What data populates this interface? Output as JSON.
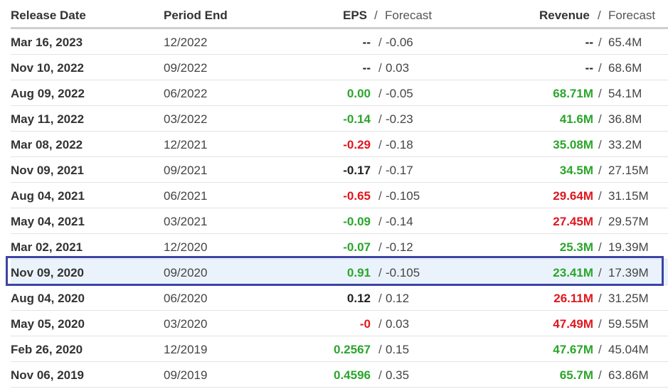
{
  "header": {
    "release_date": "Release Date",
    "period_end": "Period End",
    "eps": "EPS",
    "eps_forecast": "Forecast",
    "revenue": "Revenue",
    "revenue_forecast": "Forecast",
    "sep": "/"
  },
  "rows": [
    {
      "date": "Mar 16, 2023",
      "period": "12/2022",
      "eps": "--",
      "eps_color": "black",
      "eps_f": "-0.06",
      "rev": "--",
      "rev_color": "black",
      "rev_f": "65.4M"
    },
    {
      "date": "Nov 10, 2022",
      "period": "09/2022",
      "eps": "--",
      "eps_color": "black",
      "eps_f": "0.03",
      "rev": "--",
      "rev_color": "black",
      "rev_f": "68.6M"
    },
    {
      "date": "Aug 09, 2022",
      "period": "06/2022",
      "eps": "0.00",
      "eps_color": "green",
      "eps_f": "-0.05",
      "rev": "68.71M",
      "rev_color": "green",
      "rev_f": "54.1M"
    },
    {
      "date": "May 11, 2022",
      "period": "03/2022",
      "eps": "-0.14",
      "eps_color": "green",
      "eps_f": "-0.23",
      "rev": "41.6M",
      "rev_color": "green",
      "rev_f": "36.8M"
    },
    {
      "date": "Mar 08, 2022",
      "period": "12/2021",
      "eps": "-0.29",
      "eps_color": "red",
      "eps_f": "-0.18",
      "rev": "35.08M",
      "rev_color": "green",
      "rev_f": "33.2M"
    },
    {
      "date": "Nov 09, 2021",
      "period": "09/2021",
      "eps": "-0.17",
      "eps_color": "black",
      "eps_f": "-0.17",
      "rev": "34.5M",
      "rev_color": "green",
      "rev_f": "27.15M"
    },
    {
      "date": "Aug 04, 2021",
      "period": "06/2021",
      "eps": "-0.65",
      "eps_color": "red",
      "eps_f": "-0.105",
      "rev": "29.64M",
      "rev_color": "red",
      "rev_f": "31.15M"
    },
    {
      "date": "May 04, 2021",
      "period": "03/2021",
      "eps": "-0.09",
      "eps_color": "green",
      "eps_f": "-0.14",
      "rev": "27.45M",
      "rev_color": "red",
      "rev_f": "29.57M"
    },
    {
      "date": "Mar 02, 2021",
      "period": "12/2020",
      "eps": "-0.07",
      "eps_color": "green",
      "eps_f": "-0.12",
      "rev": "25.3M",
      "rev_color": "green",
      "rev_f": "19.39M"
    },
    {
      "date": "Nov 09, 2020",
      "period": "09/2020",
      "eps": "0.91",
      "eps_color": "green",
      "eps_f": "-0.105",
      "rev": "23.41M",
      "rev_color": "green",
      "rev_f": "17.39M",
      "highlighted": true
    },
    {
      "date": "Aug 04, 2020",
      "period": "06/2020",
      "eps": "0.12",
      "eps_color": "black",
      "eps_f": "0.12",
      "rev": "26.11M",
      "rev_color": "red",
      "rev_f": "31.25M"
    },
    {
      "date": "May 05, 2020",
      "period": "03/2020",
      "eps": "-0",
      "eps_color": "red",
      "eps_f": "0.03",
      "rev": "47.49M",
      "rev_color": "red",
      "rev_f": "59.55M"
    },
    {
      "date": "Feb 26, 2020",
      "period": "12/2019",
      "eps": "0.2567",
      "eps_color": "green",
      "eps_f": "0.15",
      "rev": "47.67M",
      "rev_color": "green",
      "rev_f": "45.04M"
    },
    {
      "date": "Nov 06, 2019",
      "period": "09/2019",
      "eps": "0.4596",
      "eps_color": "green",
      "eps_f": "0.35",
      "rev": "65.7M",
      "rev_color": "green",
      "rev_f": "63.86M"
    }
  ],
  "colors": {
    "green": "#2ba52b",
    "red": "#e0161d",
    "highlight_border": "#3b44a6",
    "highlight_bg": "#eaf3fb"
  }
}
